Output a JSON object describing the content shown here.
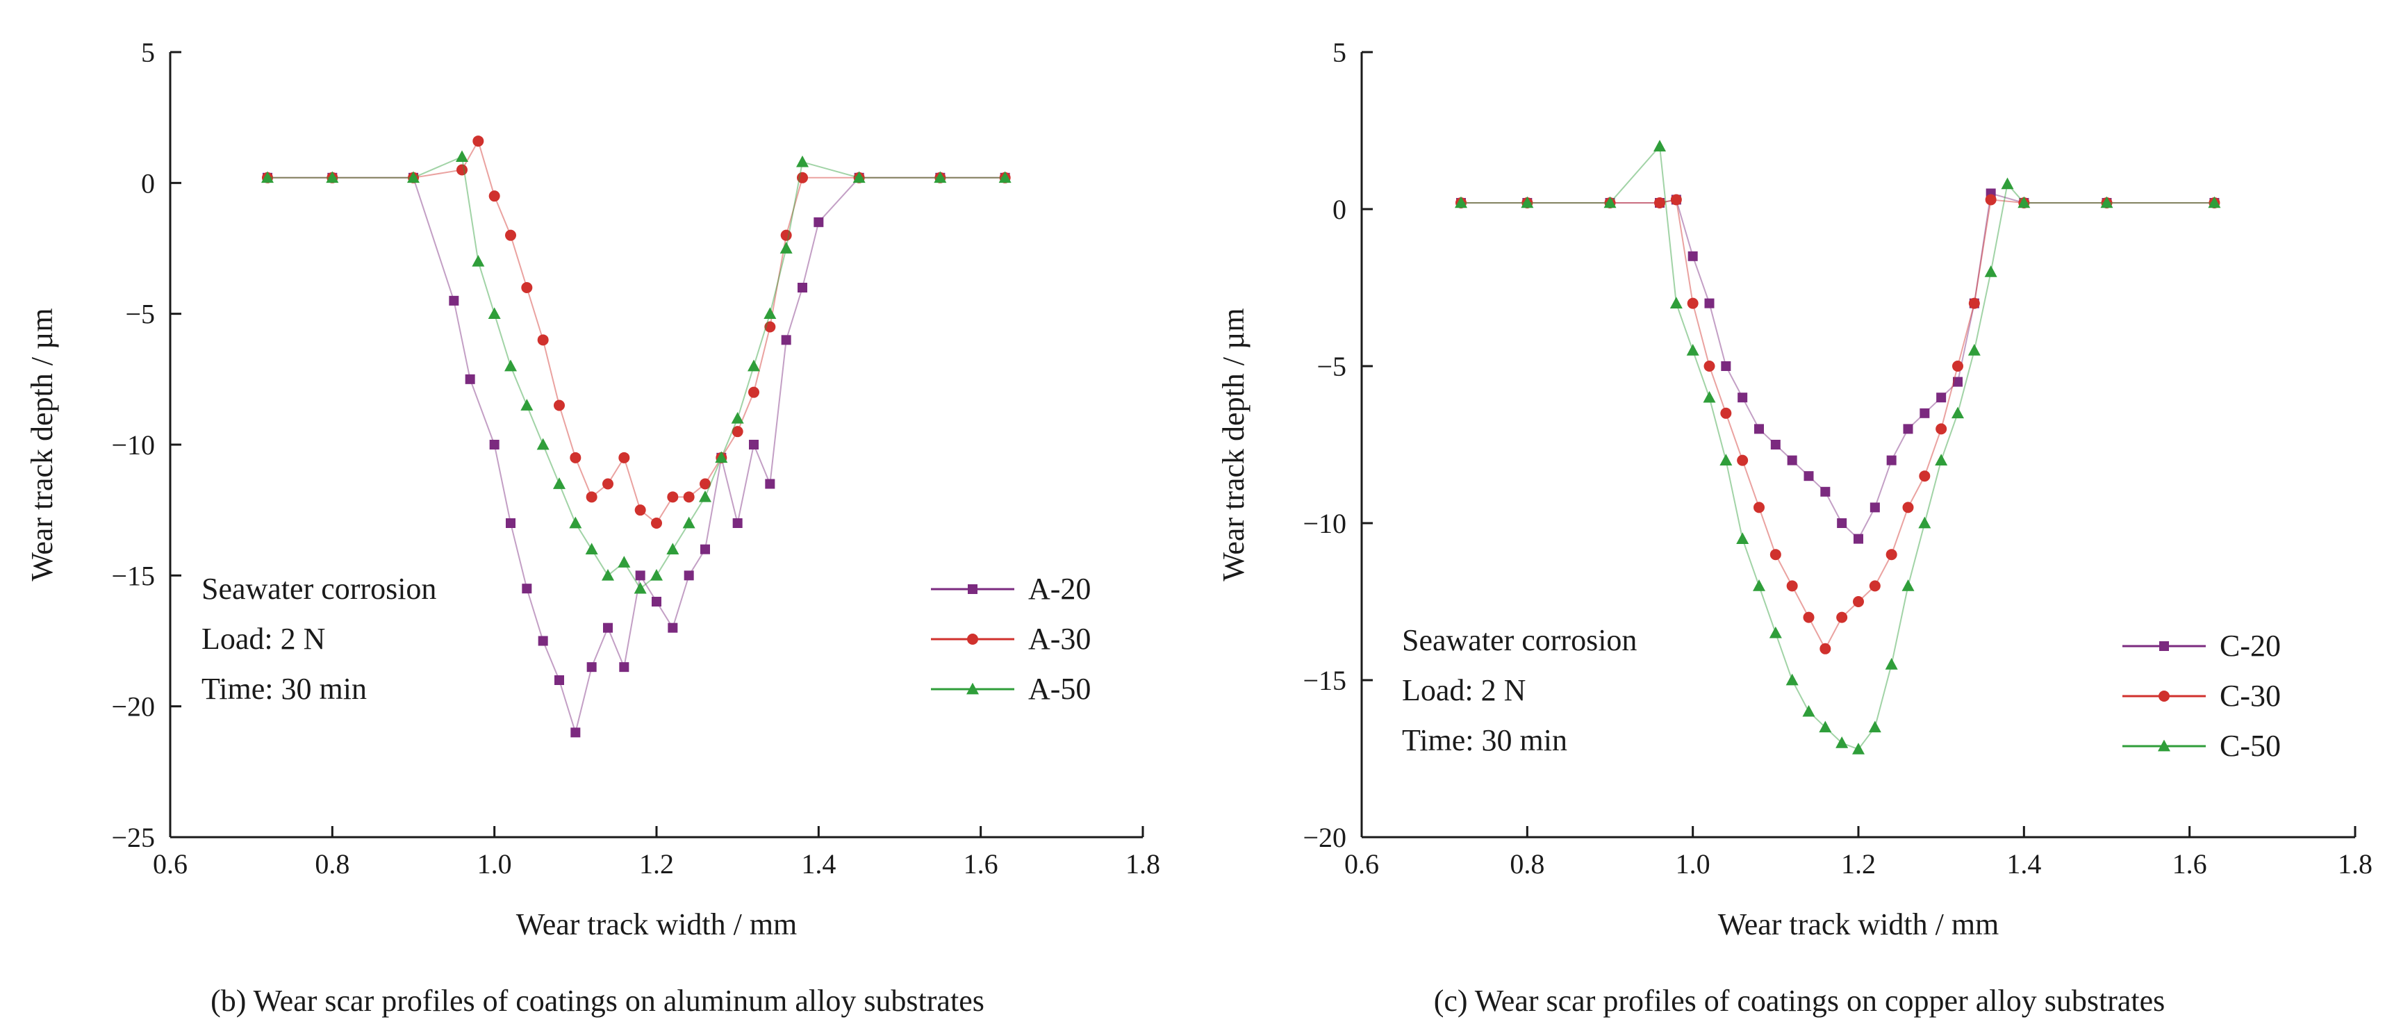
{
  "chart_data": [
    {
      "type": "scatter",
      "xlabel": "Wear track width / mm",
      "ylabel": "Wear track depth / µm",
      "xlim": [
        0.6,
        1.8
      ],
      "ylim": [
        -25,
        5
      ],
      "xticks": [
        0.6,
        0.8,
        1.0,
        1.2,
        1.4,
        1.6,
        1.8
      ],
      "xtick_labels": [
        "0.6",
        "0.8",
        "1.0",
        "1.2",
        "1.4",
        "1.6",
        "1.8"
      ],
      "yticks": [
        5,
        0,
        -5,
        -10,
        -15,
        -20,
        -25
      ],
      "ytick_labels": [
        "5",
        "0",
        "−5",
        "−10",
        "−15",
        "−20",
        "−25"
      ],
      "annotation": [
        "Seawater corrosion",
        "Load: 2 N",
        "Time: 30 min"
      ],
      "caption": "(b) Wear scar profiles of coatings on aluminum alloy substrates",
      "legend_position": "right",
      "series": [
        {
          "name": "A-20",
          "color": "#7b2a7f",
          "marker": "square",
          "x": [
            0.72,
            0.8,
            0.9,
            0.95,
            0.97,
            1.0,
            1.02,
            1.04,
            1.06,
            1.08,
            1.1,
            1.12,
            1.14,
            1.16,
            1.18,
            1.2,
            1.22,
            1.24,
            1.26,
            1.28,
            1.3,
            1.32,
            1.34,
            1.36,
            1.38,
            1.4,
            1.45,
            1.55,
            1.63
          ],
          "y": [
            0.2,
            0.2,
            0.2,
            -4.5,
            -7.5,
            -10.0,
            -13.0,
            -15.5,
            -17.5,
            -19.0,
            -21.0,
            -18.5,
            -17.0,
            -18.5,
            -15.0,
            -16.0,
            -17.0,
            -15.0,
            -14.0,
            -10.5,
            -13.0,
            -10.0,
            -11.5,
            -6.0,
            -4.0,
            -1.5,
            0.2,
            0.2,
            0.2
          ]
        },
        {
          "name": "A-30",
          "color": "#d0312d",
          "marker": "circle",
          "x": [
            0.72,
            0.8,
            0.9,
            0.96,
            0.98,
            1.0,
            1.02,
            1.04,
            1.06,
            1.08,
            1.1,
            1.12,
            1.14,
            1.16,
            1.18,
            1.2,
            1.22,
            1.24,
            1.26,
            1.28,
            1.3,
            1.32,
            1.34,
            1.36,
            1.38,
            1.45,
            1.55,
            1.63
          ],
          "y": [
            0.2,
            0.2,
            0.2,
            0.5,
            1.6,
            -0.5,
            -2.0,
            -4.0,
            -6.0,
            -8.5,
            -10.5,
            -12.0,
            -11.5,
            -10.5,
            -12.5,
            -13.0,
            -12.0,
            -12.0,
            -11.5,
            -10.5,
            -9.5,
            -8.0,
            -5.5,
            -2.0,
            0.2,
            0.2,
            0.2,
            0.2
          ]
        },
        {
          "name": "A-50",
          "color": "#2f9e3a",
          "marker": "triangle",
          "x": [
            0.72,
            0.8,
            0.9,
            0.96,
            0.98,
            1.0,
            1.02,
            1.04,
            1.06,
            1.08,
            1.1,
            1.12,
            1.14,
            1.16,
            1.18,
            1.2,
            1.22,
            1.24,
            1.26,
            1.28,
            1.3,
            1.32,
            1.34,
            1.36,
            1.38,
            1.45,
            1.55,
            1.63
          ],
          "y": [
            0.2,
            0.2,
            0.2,
            1.0,
            -3.0,
            -5.0,
            -7.0,
            -8.5,
            -10.0,
            -11.5,
            -13.0,
            -14.0,
            -15.0,
            -14.5,
            -15.5,
            -15.0,
            -14.0,
            -13.0,
            -12.0,
            -10.5,
            -9.0,
            -7.0,
            -5.0,
            -2.5,
            0.8,
            0.2,
            0.2,
            0.2
          ]
        }
      ]
    },
    {
      "type": "scatter",
      "xlabel": "Wear track width / mm",
      "ylabel": "Wear track depth / µm",
      "xlim": [
        0.6,
        1.8
      ],
      "ylim": [
        -20,
        5
      ],
      "xticks": [
        0.6,
        0.8,
        1.0,
        1.2,
        1.4,
        1.6,
        1.8
      ],
      "xtick_labels": [
        "0.6",
        "0.8",
        "1.0",
        "1.2",
        "1.4",
        "1.6",
        "1.8"
      ],
      "yticks": [
        5,
        0,
        -5,
        -10,
        -15,
        -20
      ],
      "ytick_labels": [
        "5",
        "0",
        "−5",
        "−10",
        "−15",
        "−20"
      ],
      "annotation": [
        "Seawater corrosion",
        "Load: 2 N",
        "Time: 30 min"
      ],
      "caption": "(c) Wear scar profiles of coatings on copper alloy substrates",
      "legend_position": "right",
      "series": [
        {
          "name": "C-20",
          "color": "#7b2a7f",
          "marker": "square",
          "x": [
            0.72,
            0.8,
            0.9,
            0.96,
            0.98,
            1.0,
            1.02,
            1.04,
            1.06,
            1.08,
            1.1,
            1.12,
            1.14,
            1.16,
            1.18,
            1.2,
            1.22,
            1.24,
            1.26,
            1.28,
            1.3,
            1.32,
            1.34,
            1.36,
            1.4,
            1.5,
            1.63
          ],
          "y": [
            0.2,
            0.2,
            0.2,
            0.2,
            0.3,
            -1.5,
            -3.0,
            -5.0,
            -6.0,
            -7.0,
            -7.5,
            -8.0,
            -8.5,
            -9.0,
            -10.0,
            -10.5,
            -9.5,
            -8.0,
            -7.0,
            -6.5,
            -6.0,
            -5.5,
            -3.0,
            0.5,
            0.2,
            0.2,
            0.2
          ]
        },
        {
          "name": "C-30",
          "color": "#d0312d",
          "marker": "circle",
          "x": [
            0.72,
            0.8,
            0.9,
            0.96,
            0.98,
            1.0,
            1.02,
            1.04,
            1.06,
            1.08,
            1.1,
            1.12,
            1.14,
            1.16,
            1.18,
            1.2,
            1.22,
            1.24,
            1.26,
            1.28,
            1.3,
            1.32,
            1.34,
            1.36,
            1.4,
            1.5,
            1.63
          ],
          "y": [
            0.2,
            0.2,
            0.2,
            0.2,
            0.3,
            -3.0,
            -5.0,
            -6.5,
            -8.0,
            -9.5,
            -11.0,
            -12.0,
            -13.0,
            -14.0,
            -13.0,
            -12.5,
            -12.0,
            -11.0,
            -9.5,
            -8.5,
            -7.0,
            -5.0,
            -3.0,
            0.3,
            0.2,
            0.2,
            0.2
          ]
        },
        {
          "name": "C-50",
          "color": "#2f9e3a",
          "marker": "triangle",
          "x": [
            0.72,
            0.8,
            0.9,
            0.96,
            0.98,
            1.0,
            1.02,
            1.04,
            1.06,
            1.08,
            1.1,
            1.12,
            1.14,
            1.16,
            1.18,
            1.2,
            1.22,
            1.24,
            1.26,
            1.28,
            1.3,
            1.32,
            1.34,
            1.36,
            1.38,
            1.4,
            1.5,
            1.63
          ],
          "y": [
            0.2,
            0.2,
            0.2,
            2.0,
            -3.0,
            -4.5,
            -6.0,
            -8.0,
            -10.5,
            -12.0,
            -13.5,
            -15.0,
            -16.0,
            -16.5,
            -17.0,
            -17.2,
            -16.5,
            -14.5,
            -12.0,
            -10.0,
            -8.0,
            -6.5,
            -4.5,
            -2.0,
            0.8,
            0.2,
            0.2,
            0.2
          ]
        }
      ]
    }
  ]
}
